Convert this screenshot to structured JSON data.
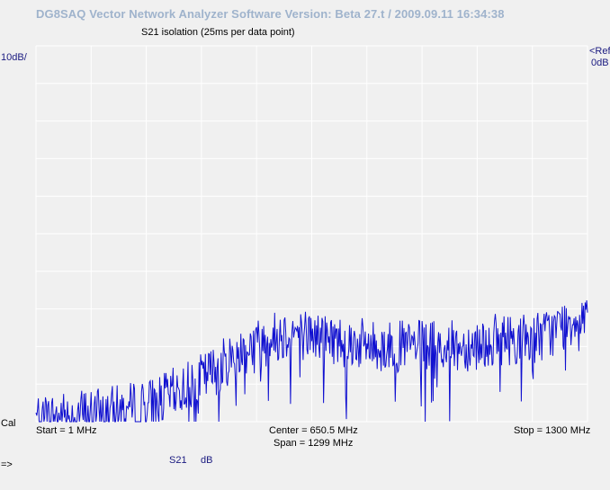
{
  "window": {
    "app_title": "DG8SAQ Vector Network Analyzer Software    Version:  Beta 27.t / 2009.09.11 16:34:38"
  },
  "plot": {
    "title": "S21 isolation (25ms per data point)",
    "scale_label": "10dB/",
    "ref_marker": "<Ref",
    "ref_value": "0dB",
    "cal_label": "Cal",
    "start_label": "Start = 1 MHz",
    "center_label": "Center = 650.5 MHz",
    "span_label": "Span = 1299 MHz",
    "stop_label": "Stop = 1300 MHz",
    "legend_trace": "S21",
    "legend_unit": "dB",
    "prompt": "=>"
  },
  "colors": {
    "trace": "#1010d0",
    "grid": "#ffffff",
    "background": "#f0f0f0",
    "title": "#9fb3cc",
    "label": "#1a1a80"
  },
  "chart_data": {
    "type": "line",
    "x_unit": "MHz",
    "y_unit": "dB",
    "x_range": [
      1,
      1300
    ],
    "y_range": [
      -100,
      0
    ],
    "y_per_div": 10,
    "grid": true,
    "series": [
      {
        "name": "S21",
        "x": [
          1,
          50,
          100,
          150,
          200,
          250,
          300,
          350,
          400,
          450,
          500,
          550,
          600,
          650,
          700,
          750,
          800,
          850,
          900,
          950,
          1000,
          1050,
          1100,
          1150,
          1200,
          1250,
          1300
        ],
        "values": [
          -99,
          -99,
          -98,
          -98,
          -97,
          -96,
          -94,
          -91,
          -88,
          -84,
          -80,
          -78,
          -76,
          -77,
          -78,
          -79,
          -80,
          -80,
          -80,
          -80,
          -80,
          -79,
          -78,
          -78,
          -77,
          -74,
          -70
        ]
      }
    ]
  }
}
